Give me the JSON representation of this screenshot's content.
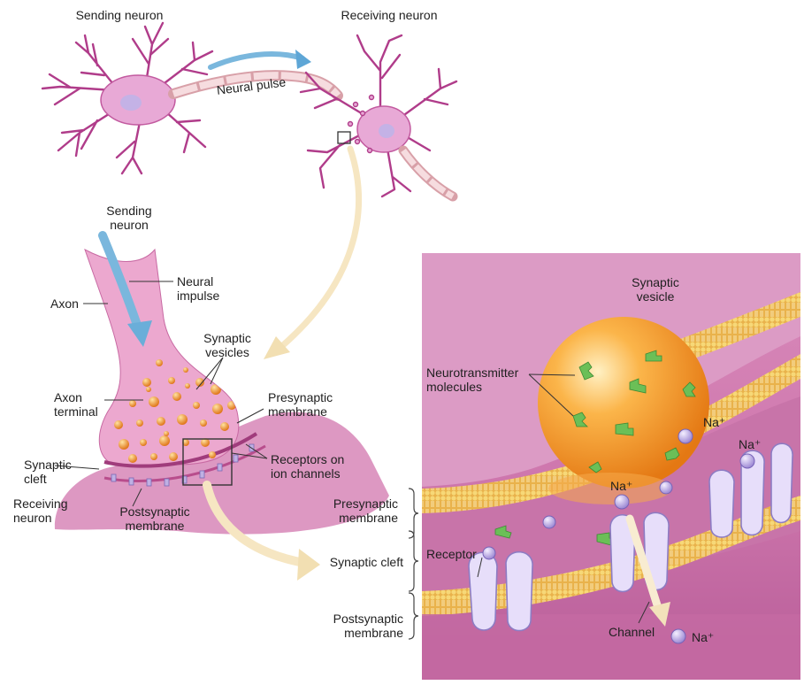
{
  "labels": {
    "sending_neuron_top": "Sending neuron",
    "receiving_neuron_top": "Receiving neuron",
    "neural_pulse": "Neural pulse",
    "sending_neuron": "Sending\nneuron",
    "axon": "Axon",
    "neural_impulse": "Neural\nimpulse",
    "synaptic_vesicles": "Synaptic\nvesicles",
    "axon_terminal": "Axon\nterminal",
    "presynaptic_membrane_left": "Presynaptic\nmembrane",
    "synaptic_cleft_left": "Synaptic\ncleft",
    "receptors_on_ion_channels": "Receptors on\nion channels",
    "receiving_neuron": "Receiving\nneuron",
    "postsynaptic_membrane_left": "Postsynaptic\nmembrane",
    "synaptic_vesicle": "Synaptic\nvesicle",
    "neurotransmitter_molecules": "Neurotransmitter\nmolecules",
    "na_plus": "Na⁺",
    "presynaptic_membrane_right": "Presynaptic\nmembrane",
    "synaptic_cleft_right": "Synaptic cleft",
    "receptor": "Receptor",
    "postsynaptic_membrane_right": "Postsynaptic\nmembrane",
    "channel": "Channel"
  },
  "colors": {
    "neuron_pink": "#e8a9d6",
    "neuron_outline": "#b5408f",
    "nucleus": "#c4b2e6",
    "myelin": "#f3d6d8",
    "impulse_arrow": "#7ab7dd",
    "callout_arrow": "#f6e6c2",
    "vesicle_orange": "#f28d1c",
    "membrane_yellow": "#f2cf5b",
    "transmitter_green": "#6bbf57",
    "ion_purple": "#b9a8e3",
    "cell_mauve": "#c96ea4"
  }
}
